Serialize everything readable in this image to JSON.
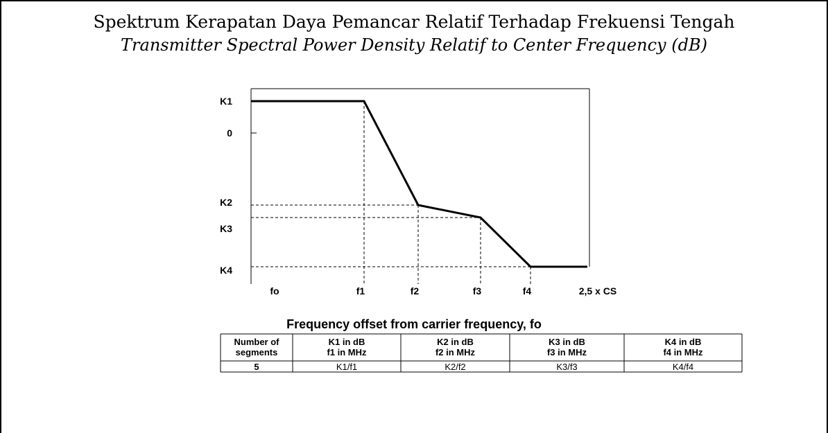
{
  "header": {
    "title": "Spektrum Kerapatan Daya Pemancar Relatif Terhadap Frekuensi Tengah",
    "subtitle": "Transmitter Spectral Power Density Relatif to Center Frequency (dB)"
  },
  "diagram": {
    "y_labels": [
      "K1",
      "0",
      "K2",
      "K3",
      "K4"
    ],
    "x_labels": [
      "fo",
      "f1",
      "f2",
      "f3",
      "f4",
      "2,5 x CS"
    ],
    "caption": "Frequency offset from carrier frequency, fo"
  },
  "table": {
    "header": [
      [
        "Number of",
        "segments"
      ],
      [
        "K1 in dB",
        "f1 in MHz"
      ],
      [
        "K2 in dB",
        "f2 in MHz"
      ],
      [
        "K3 in dB",
        "f3 in MHz"
      ],
      [
        "K4 in dB",
        "f4 in MHz"
      ]
    ],
    "rows": [
      [
        "5",
        "K1/f1",
        "K2/f2",
        "K3/f3",
        "K4/f4"
      ]
    ]
  }
}
